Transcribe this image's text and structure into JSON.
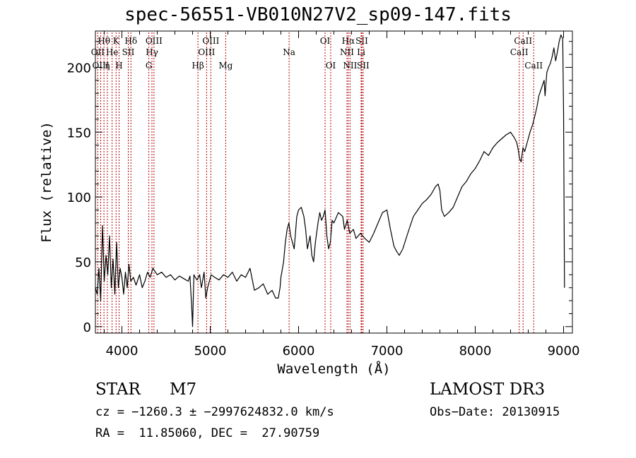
{
  "chart_data": {
    "type": "line",
    "title": "spec-56551-VB010N27V2_sp09-147.fits",
    "xlabel": "Wavelength (Å)",
    "ylabel": "Flux (relative)",
    "xlim": [
      3700,
      9100
    ],
    "ylim": [
      -5,
      228
    ],
    "xticks": [
      4000,
      5000,
      6000,
      7000,
      8000,
      9000
    ],
    "xtick_labels": [
      "4000",
      "5000",
      "6000",
      "7000",
      "8000",
      "9000"
    ],
    "yticks": [
      0,
      50,
      100,
      150,
      200
    ],
    "ytick_labels": [
      "0",
      "50",
      "100",
      "150",
      "200"
    ],
    "grid": false,
    "line_color": "#000000",
    "marker_color": "#b30000",
    "spectrum": {
      "x": [
        3700,
        3720,
        3740,
        3760,
        3780,
        3800,
        3820,
        3840,
        3860,
        3880,
        3900,
        3920,
        3940,
        3960,
        3980,
        4000,
        4020,
        4040,
        4060,
        4080,
        4100,
        4130,
        4160,
        4200,
        4230,
        4260,
        4290,
        4320,
        4350,
        4400,
        4450,
        4500,
        4550,
        4600,
        4650,
        4700,
        4750,
        4770,
        4790,
        4800,
        4815,
        4830,
        4850,
        4880,
        4900,
        4930,
        4950,
        4970,
        4990,
        5010,
        5050,
        5100,
        5150,
        5200,
        5250,
        5300,
        5350,
        5400,
        5450,
        5500,
        5550,
        5600,
        5650,
        5700,
        5740,
        5770,
        5790,
        5800,
        5830,
        5850,
        5870,
        5890,
        5910,
        5950,
        5980,
        6000,
        6030,
        6060,
        6080,
        6100,
        6130,
        6150,
        6170,
        6190,
        6220,
        6240,
        6260,
        6280,
        6300,
        6320,
        6340,
        6360,
        6380,
        6400,
        6450,
        6500,
        6520,
        6550,
        6580,
        6620,
        6650,
        6700,
        6750,
        6800,
        6850,
        6900,
        6950,
        7000,
        7040,
        7080,
        7110,
        7140,
        7180,
        7250,
        7300,
        7350,
        7400,
        7450,
        7500,
        7550,
        7580,
        7600,
        7620,
        7650,
        7700,
        7750,
        7800,
        7850,
        7900,
        7950,
        8000,
        8050,
        8100,
        8150,
        8200,
        8250,
        8300,
        8350,
        8400,
        8440,
        8470,
        8490,
        8500,
        8520,
        8540,
        8560,
        8580,
        8600,
        8620,
        8650,
        8680,
        8700,
        8720,
        8740,
        8760,
        8780,
        8790,
        8810,
        8830,
        8850,
        8870,
        8890,
        8910,
        8930,
        8950,
        8970,
        8990,
        9000,
        9010
      ],
      "y": [
        30,
        25,
        45,
        20,
        78,
        35,
        55,
        40,
        70,
        30,
        52,
        25,
        65,
        30,
        45,
        38,
        25,
        42,
        30,
        48,
        35,
        38,
        32,
        40,
        30,
        35,
        42,
        38,
        45,
        40,
        42,
        38,
        40,
        36,
        39,
        37,
        35,
        39,
        15,
        0,
        40,
        38,
        36,
        40,
        30,
        42,
        22,
        30,
        35,
        40,
        38,
        36,
        40,
        38,
        42,
        35,
        40,
        38,
        45,
        28,
        30,
        33,
        25,
        28,
        22,
        22,
        30,
        38,
        50,
        65,
        75,
        80,
        70,
        60,
        85,
        90,
        92,
        85,
        75,
        60,
        70,
        55,
        50,
        65,
        80,
        88,
        82,
        85,
        90,
        70,
        60,
        65,
        82,
        80,
        88,
        85,
        75,
        82,
        72,
        75,
        68,
        72,
        68,
        65,
        72,
        80,
        88,
        90,
        75,
        62,
        58,
        55,
        60,
        75,
        85,
        90,
        95,
        98,
        102,
        108,
        110,
        105,
        90,
        85,
        88,
        92,
        100,
        108,
        112,
        118,
        122,
        128,
        135,
        132,
        138,
        142,
        145,
        148,
        150,
        146,
        142,
        135,
        130,
        127,
        138,
        135,
        140,
        145,
        150,
        156,
        164,
        170,
        178,
        182,
        186,
        190,
        178,
        196,
        200,
        203,
        208,
        215,
        205,
        212,
        220,
        225,
        222,
        165,
        30
      ]
    },
    "lines": [
      {
        "label": "Hθ",
        "x": 3797,
        "row": 0
      },
      {
        "label": "K",
        "x": 3934,
        "row": 0
      },
      {
        "label": "Hδ",
        "x": 4102,
        "row": 0
      },
      {
        "label": "OIII",
        "x": 4363,
        "row": 0
      },
      {
        "label": "OIII",
        "x": 5007,
        "row": 0
      },
      {
        "label": "OI",
        "x": 6300,
        "row": 0
      },
      {
        "label": "Hα",
        "x": 6563,
        "row": 0
      },
      {
        "label": "SII",
        "x": 6716,
        "row": 0
      },
      {
        "label": "CaII",
        "x": 8542,
        "row": 0
      },
      {
        "label": "OII",
        "x": 3727,
        "row": 1
      },
      {
        "label": "He",
        "x": 3889,
        "row": 1
      },
      {
        "label": "SII",
        "x": 4072,
        "row": 1
      },
      {
        "label": "Hγ",
        "x": 4340,
        "row": 1
      },
      {
        "label": "OIII",
        "x": 4959,
        "row": 1
      },
      {
        "label": "Na",
        "x": 5893,
        "row": 1
      },
      {
        "label": "NII",
        "x": 6548,
        "row": 1
      },
      {
        "label": "Li",
        "x": 6708,
        "row": 1
      },
      {
        "label": "CaII",
        "x": 8498,
        "row": 1
      },
      {
        "label": "OIII",
        "x": 3760,
        "row": 2
      },
      {
        "label": "η",
        "x": 3835,
        "row": 2
      },
      {
        "label": "H",
        "x": 3968,
        "row": 2
      },
      {
        "label": "G",
        "x": 4305,
        "row": 2
      },
      {
        "label": "Hβ",
        "x": 4861,
        "row": 2
      },
      {
        "label": "Mg",
        "x": 5175,
        "row": 2
      },
      {
        "label": "OI",
        "x": 6364,
        "row": 2
      },
      {
        "label": "NII",
        "x": 6583,
        "row": 2
      },
      {
        "label": "SII",
        "x": 6731,
        "row": 2
      },
      {
        "label": "CaII",
        "x": 8662,
        "row": 2
      }
    ]
  },
  "info": {
    "object_class": "STAR",
    "subclass": "M7",
    "survey": "LAMOST DR3",
    "cz": "cz = −1260.3 ± −2997624832.0 km/s",
    "obs_date": "Obs−Date: 20130915",
    "coords": "RA =  11.85060, DEC =  27.90759"
  }
}
